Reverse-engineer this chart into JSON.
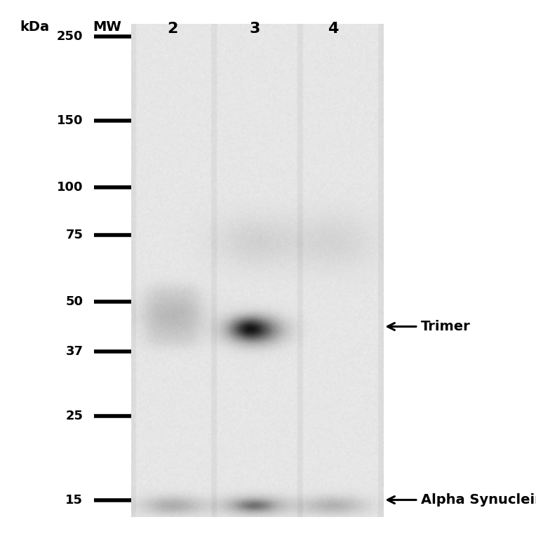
{
  "fig_width": 7.64,
  "fig_height": 7.64,
  "dpi": 100,
  "bg_color": "#ffffff",
  "mw_labels": [
    250,
    150,
    100,
    75,
    50,
    37,
    25,
    15
  ],
  "lane_labels": [
    "2",
    "3",
    "4"
  ],
  "gel_base_gray": 0.86,
  "noise_std": 0.015,
  "lane_lighter": 0.04,
  "trimer_label": "Trimer",
  "alpha_syn_label": "Alpha Synuclein",
  "kda_header": "kDa",
  "mw_header": "MW"
}
